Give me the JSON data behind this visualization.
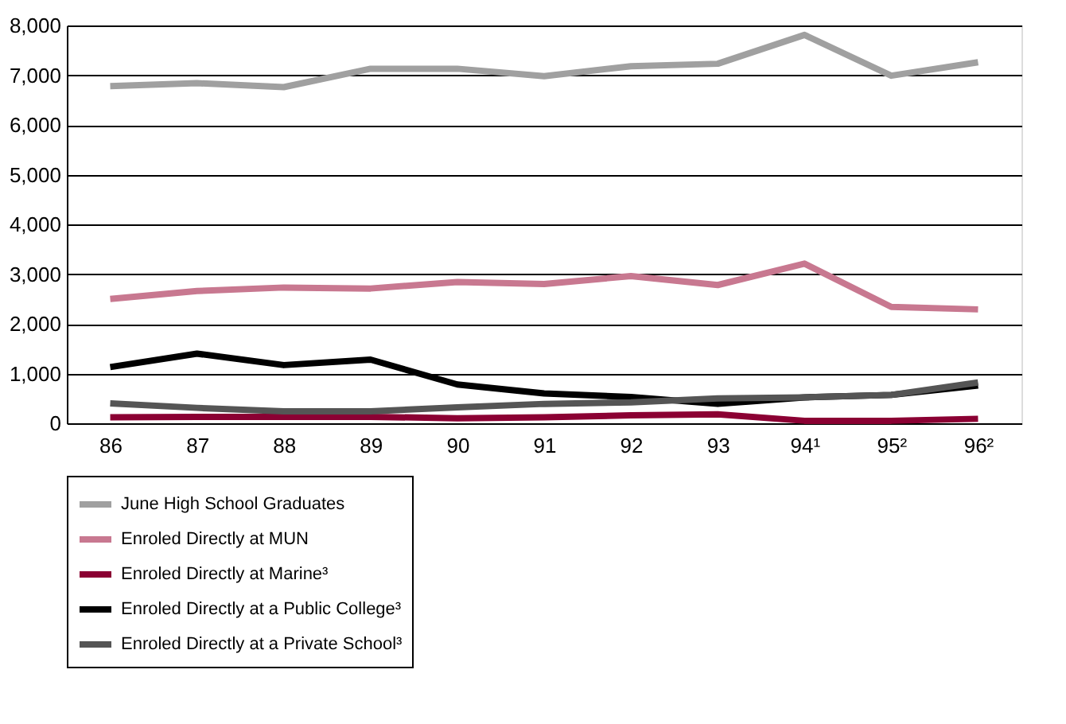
{
  "chart_data": {
    "type": "line",
    "categories": [
      "86",
      "87",
      "88",
      "89",
      "90",
      "91",
      "92",
      "93",
      "94¹",
      "95²",
      "96²"
    ],
    "series": [
      {
        "name": "June High School Graduates",
        "color": "#a0a0a0",
        "values": [
          6780,
          6840,
          6760,
          7130,
          7130,
          6980,
          7180,
          7230,
          7810,
          6990,
          7260
        ]
      },
      {
        "name": "Enroled Directly at MUN",
        "color": "#c87890",
        "values": [
          2500,
          2660,
          2730,
          2710,
          2840,
          2800,
          2960,
          2780,
          3210,
          2340,
          2290
        ]
      },
      {
        "name": "Enroled Directly at Marine³",
        "color": "#8b0033",
        "values": [
          120,
          130,
          130,
          130,
          100,
          120,
          160,
          180,
          50,
          50,
          90
        ]
      },
      {
        "name": "Enroled Directly at a Public College³",
        "color": "#000000",
        "values": [
          1130,
          1400,
          1170,
          1280,
          780,
          600,
          530,
          390,
          520,
          570,
          760
        ]
      },
      {
        "name": "Enroled Directly at a Private School³",
        "color": "#555555",
        "values": [
          400,
          310,
          240,
          240,
          320,
          390,
          420,
          500,
          520,
          570,
          820
        ]
      }
    ],
    "ylim": [
      0,
      8000
    ],
    "yticks": [
      0,
      {
        "value": 1000,
        "label": "1,000"
      },
      {
        "value": 2000,
        "label": "2,000"
      },
      {
        "value": 3000,
        "label": "3,000"
      },
      {
        "value": 4000,
        "label": "4,000"
      },
      {
        "value": 5000,
        "label": "5,000"
      },
      {
        "value": 6000,
        "label": "6,000"
      },
      {
        "value": 7000,
        "label": "7,000"
      },
      {
        "value": 8000,
        "label": "8,000"
      }
    ],
    "grid": "y",
    "legend": "bottom",
    "marker": "none",
    "line_style": "solid"
  }
}
